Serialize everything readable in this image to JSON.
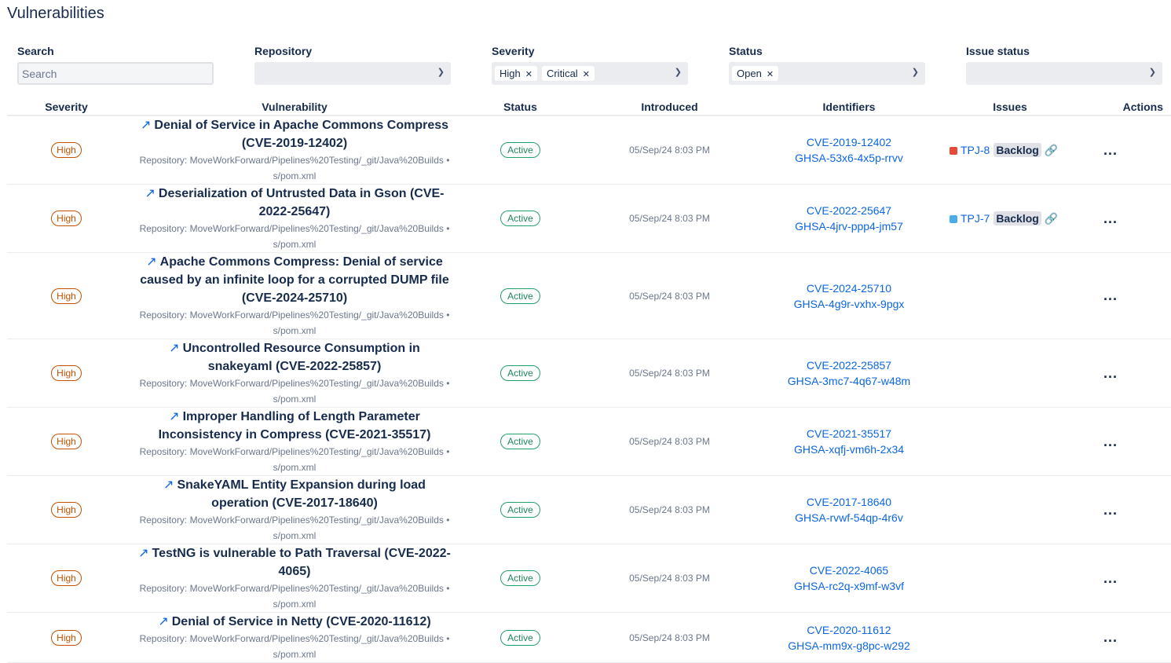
{
  "title": "Vulnerabilities",
  "filters": {
    "search": {
      "label": "Search",
      "placeholder": "Search"
    },
    "repository": {
      "label": "Repository"
    },
    "severity": {
      "label": "Severity",
      "tags": [
        "High",
        "Critical"
      ]
    },
    "status": {
      "label": "Status",
      "tags": [
        "Open"
      ]
    },
    "issue_status": {
      "label": "Issue status"
    }
  },
  "columns": [
    "Severity",
    "Vulnerability",
    "Status",
    "Introduced",
    "Identifiers",
    "Issues",
    "Actions"
  ],
  "rows": [
    {
      "severity": "High",
      "title": "Denial of Service in Apache Commons Compress (CVE-2019-12402)",
      "repo": "Repository: MoveWorkForward/Pipelines%20Testing/_git/Java%20Builds • s/pom.xml",
      "status": "Active",
      "introduced": "05/Sep/24 8:03 PM",
      "ids": [
        "CVE-2019-12402",
        "GHSA-53x6-4x5p-rrvv"
      ],
      "issue": {
        "key": "TPJ-8",
        "status": "Backlog",
        "type": "bug",
        "color": "#e5493a"
      }
    },
    {
      "severity": "High",
      "title": "Deserialization of Untrusted Data in Gson (CVE-2022-25647)",
      "repo": "Repository: MoveWorkForward/Pipelines%20Testing/_git/Java%20Builds • s/pom.xml",
      "status": "Active",
      "introduced": "05/Sep/24 8:03 PM",
      "ids": [
        "CVE-2022-25647",
        "GHSA-4jrv-ppp4-jm57"
      ],
      "issue": {
        "key": "TPJ-7",
        "status": "Backlog",
        "type": "task",
        "color": "#4bade8"
      }
    },
    {
      "severity": "High",
      "title": "Apache Commons Compress: Denial of service caused by an infinite loop for a corrupted DUMP file (CVE-2024-25710)",
      "repo": "Repository: MoveWorkForward/Pipelines%20Testing/_git/Java%20Builds • s/pom.xml",
      "status": "Active",
      "introduced": "05/Sep/24 8:03 PM",
      "ids": [
        "CVE-2024-25710",
        "GHSA-4g9r-vxhx-9pgx"
      ]
    },
    {
      "severity": "High",
      "title": "Uncontrolled Resource Consumption in snakeyaml (CVE-2022-25857)",
      "repo": "Repository: MoveWorkForward/Pipelines%20Testing/_git/Java%20Builds • s/pom.xml",
      "status": "Active",
      "introduced": "05/Sep/24 8:03 PM",
      "ids": [
        "CVE-2022-25857",
        "GHSA-3mc7-4q67-w48m"
      ]
    },
    {
      "severity": "High",
      "title": "Improper Handling of Length Parameter Inconsistency in Compress (CVE-2021-35517)",
      "repo": "Repository: MoveWorkForward/Pipelines%20Testing/_git/Java%20Builds • s/pom.xml",
      "status": "Active",
      "introduced": "05/Sep/24 8:03 PM",
      "ids": [
        "CVE-2021-35517",
        "GHSA-xqfj-vm6h-2x34"
      ]
    },
    {
      "severity": "High",
      "title": "SnakeYAML Entity Expansion during load operation (CVE-2017-18640)",
      "repo": "Repository: MoveWorkForward/Pipelines%20Testing/_git/Java%20Builds • s/pom.xml",
      "status": "Active",
      "introduced": "05/Sep/24 8:03 PM",
      "ids": [
        "CVE-2017-18640",
        "GHSA-rvwf-54qp-4r6v"
      ]
    },
    {
      "severity": "High",
      "title": "TestNG is vulnerable to Path Traversal (CVE-2022-4065)",
      "repo": "Repository: MoveWorkForward/Pipelines%20Testing/_git/Java%20Builds • s/pom.xml",
      "status": "Active",
      "introduced": "05/Sep/24 8:03 PM",
      "ids": [
        "CVE-2022-4065",
        "GHSA-rc2q-x9mf-w3vf"
      ]
    },
    {
      "severity": "High",
      "title": "Denial of Service in Netty (CVE-2020-11612)",
      "repo": "Repository: MoveWorkForward/Pipelines%20Testing/_git/Java%20Builds • s/pom.xml",
      "status": "Active",
      "introduced": "05/Sep/24 8:03 PM",
      "ids": [
        "CVE-2020-11612",
        "GHSA-mm9x-g8pc-w292"
      ]
    }
  ],
  "actions_label": "..."
}
